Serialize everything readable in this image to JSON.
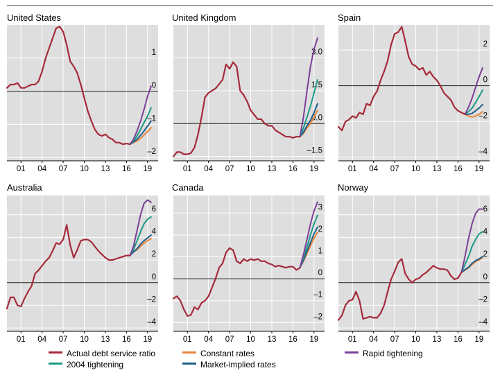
{
  "colors": {
    "actual": "#a52a3a",
    "constant": "#e8833a",
    "market": "#1f5f8b",
    "tight2004": "#1a9a85",
    "rapid": "#7b3f98",
    "panel_bg": "#dedede",
    "grid": "#ffffff"
  },
  "legend": {
    "actual": "Actual debt service ratio",
    "tight2004": "2004 tightening",
    "constant": "Constant rates",
    "market": "Market-implied rates",
    "rapid": "Rapid tightening"
  },
  "chart_data": [
    {
      "type": "line",
      "title": "United States",
      "x_ticks": [
        "01",
        "04",
        "07",
        "10",
        "13",
        "16",
        "19"
      ],
      "x_tick_years": [
        2001,
        2004,
        2007,
        2010,
        2013,
        2016,
        2019
      ],
      "x_range": [
        1999,
        2020.5
      ],
      "ylim": [
        -2.1,
        2.0
      ],
      "y_ticks": [
        1,
        0,
        -1,
        -2
      ],
      "y_tick_labels": [
        "1",
        "0",
        "–1",
        "–2"
      ],
      "zero_line": 0,
      "actual": {
        "x": [
          1999,
          1999.5,
          2000,
          2000.5,
          2001,
          2001.5,
          2002,
          2002.5,
          2003,
          2003.5,
          2004,
          2004.5,
          2005,
          2005.5,
          2006,
          2006.5,
          2007,
          2007.5,
          2008,
          2008.5,
          2009,
          2009.5,
          2010,
          2010.5,
          2011,
          2011.5,
          2012,
          2012.5,
          2013,
          2013.5,
          2014,
          2014.5,
          2015,
          2015.5,
          2016,
          2016.5
        ],
        "y": [
          0.1,
          0.2,
          0.2,
          0.25,
          0.1,
          0.1,
          0.15,
          0.2,
          0.2,
          0.3,
          0.6,
          1.0,
          1.3,
          1.6,
          1.9,
          1.95,
          1.8,
          1.4,
          0.9,
          0.75,
          0.55,
          0.2,
          -0.2,
          -0.6,
          -0.9,
          -1.15,
          -1.3,
          -1.35,
          -1.3,
          -1.4,
          -1.45,
          -1.55,
          -1.55,
          -1.6,
          -1.58,
          -1.6
        ]
      },
      "projections": {
        "x": [
          2016.5,
          2017,
          2017.5,
          2018,
          2018.5,
          2019,
          2019.5
        ],
        "constant": [
          -1.6,
          -1.55,
          -1.5,
          -1.42,
          -1.32,
          -1.22,
          -1.1
        ],
        "market": [
          -1.6,
          -1.53,
          -1.45,
          -1.33,
          -1.2,
          -1.05,
          -0.9
        ],
        "tight2004": [
          -1.6,
          -1.5,
          -1.35,
          -1.15,
          -0.95,
          -0.75,
          -0.5
        ],
        "rapid": [
          -1.6,
          -1.45,
          -1.2,
          -0.9,
          -0.55,
          -0.15,
          0.15
        ]
      }
    },
    {
      "type": "line",
      "title": "United Kingdom",
      "x_ticks": [
        "01",
        "04",
        "07",
        "10",
        "13",
        "16",
        "19"
      ],
      "x_tick_years": [
        2001,
        2004,
        2007,
        2010,
        2013,
        2016,
        2019
      ],
      "x_range": [
        1999,
        2020.5
      ],
      "ylim": [
        -1.7,
        4.5
      ],
      "y_ticks": [
        3.0,
        1.5,
        0.0,
        -1.5
      ],
      "y_tick_labels": [
        "3.0",
        "1.5",
        "0.0",
        "–1.5"
      ],
      "zero_line": 0,
      "actual": {
        "x": [
          1999,
          1999.5,
          2000,
          2000.5,
          2001,
          2001.5,
          2002,
          2002.5,
          2003,
          2003.5,
          2004,
          2004.5,
          2005,
          2005.5,
          2006,
          2006.5,
          2007,
          2007.5,
          2008,
          2008.5,
          2009,
          2009.5,
          2010,
          2010.5,
          2011,
          2011.5,
          2012,
          2012.5,
          2013,
          2013.5,
          2014,
          2014.5,
          2015,
          2015.5,
          2016,
          2016.5,
          2017
        ],
        "y": [
          -1.5,
          -1.3,
          -1.3,
          -1.4,
          -1.4,
          -1.35,
          -1.1,
          -0.5,
          0.3,
          1.2,
          1.4,
          1.5,
          1.6,
          1.8,
          2.0,
          2.7,
          2.5,
          2.8,
          2.6,
          1.5,
          1.3,
          1.0,
          0.6,
          0.4,
          0.2,
          0.2,
          0.0,
          -0.1,
          -0.1,
          -0.3,
          -0.4,
          -0.5,
          -0.6,
          -0.6,
          -0.65,
          -0.6,
          -0.6
        ]
      },
      "projections": {
        "x": [
          2017,
          2017.5,
          2018,
          2018.5,
          2019,
          2019.5
        ],
        "constant": [
          -0.6,
          -0.45,
          -0.2,
          0.0,
          0.3,
          0.6
        ],
        "market": [
          -0.6,
          -0.4,
          -0.1,
          0.15,
          0.5,
          0.9
        ],
        "tight2004": [
          -0.6,
          -0.2,
          0.3,
          0.8,
          1.4,
          2.0
        ],
        "rapid": [
          -0.6,
          0.3,
          1.5,
          2.6,
          3.4,
          3.9
        ]
      }
    },
    {
      "type": "line",
      "title": "Spain",
      "x_ticks": [
        "01",
        "04",
        "07",
        "10",
        "13",
        "16",
        "19"
      ],
      "x_tick_years": [
        2001,
        2004,
        2007,
        2010,
        2013,
        2016,
        2019
      ],
      "x_range": [
        1999,
        2020.5
      ],
      "ylim": [
        -4.2,
        3.4
      ],
      "y_ticks": [
        2,
        0,
        -2,
        -4
      ],
      "y_tick_labels": [
        "2",
        "0",
        "–2",
        "–4"
      ],
      "zero_line": 0,
      "actual": {
        "x": [
          1999,
          1999.5,
          2000,
          2000.5,
          2001,
          2001.5,
          2002,
          2002.5,
          2003,
          2003.5,
          2004,
          2004.5,
          2005,
          2005.5,
          2006,
          2006.5,
          2007,
          2007.5,
          2008,
          2008.5,
          2009,
          2009.5,
          2010,
          2010.5,
          2011,
          2011.5,
          2012,
          2012.5,
          2013,
          2013.5,
          2014,
          2014.5,
          2015,
          2015.5,
          2016,
          2016.5,
          2017
        ],
        "y": [
          -2.3,
          -2.5,
          -2.0,
          -1.9,
          -1.7,
          -1.8,
          -1.5,
          -1.6,
          -1.0,
          -1.1,
          -0.6,
          -0.3,
          0.3,
          0.8,
          1.4,
          2.3,
          2.9,
          3.0,
          3.3,
          2.5,
          1.6,
          1.2,
          1.1,
          0.9,
          1.0,
          0.6,
          0.8,
          0.5,
          0.3,
          0.0,
          -0.4,
          -0.6,
          -0.8,
          -1.2,
          -1.4,
          -1.5,
          -1.6
        ]
      },
      "projections": {
        "x": [
          2017,
          2017.5,
          2018,
          2018.5,
          2019,
          2019.5
        ],
        "constant": [
          -1.6,
          -1.7,
          -1.75,
          -1.7,
          -1.6,
          -1.45
        ],
        "market": [
          -1.6,
          -1.6,
          -1.55,
          -1.4,
          -1.25,
          -1.05
        ],
        "tight2004": [
          -1.6,
          -1.45,
          -1.25,
          -0.95,
          -0.6,
          -0.25
        ],
        "rapid": [
          -1.6,
          -1.2,
          -0.7,
          -0.1,
          0.5,
          1.0
        ]
      }
    },
    {
      "type": "line",
      "title": "Australia",
      "x_ticks": [
        "01",
        "04",
        "07",
        "10",
        "13",
        "16",
        "19"
      ],
      "x_tick_years": [
        2001,
        2004,
        2007,
        2010,
        2013,
        2016,
        2019
      ],
      "x_range": [
        1999,
        2020.5
      ],
      "ylim": [
        -4.3,
        7.7
      ],
      "y_ticks": [
        6,
        4,
        2,
        0,
        -2,
        -4
      ],
      "y_tick_labels": [
        "6",
        "4",
        "2",
        "0",
        "–2",
        "–4"
      ],
      "zero_line": 0,
      "actual": {
        "x": [
          1999,
          1999.5,
          2000,
          2000.5,
          2001,
          2001.5,
          2002,
          2002.5,
          2003,
          2003.5,
          2004,
          2004.5,
          2005,
          2005.5,
          2006,
          2006.5,
          2007,
          2007.5,
          2008,
          2008.5,
          2009,
          2009.5,
          2010,
          2010.5,
          2011,
          2011.5,
          2012,
          2012.5,
          2013,
          2013.5,
          2014,
          2014.5,
          2015,
          2015.5,
          2016,
          2016.5
        ],
        "y": [
          -2.3,
          -1.3,
          -1.3,
          -2.0,
          -2.1,
          -1.4,
          -0.8,
          -0.3,
          0.8,
          1.1,
          1.5,
          1.9,
          2.2,
          2.8,
          3.5,
          3.4,
          3.8,
          5.1,
          3.3,
          2.2,
          2.9,
          3.7,
          3.8,
          3.8,
          3.6,
          3.2,
          2.8,
          2.5,
          2.2,
          2.0,
          2.0,
          2.1,
          2.2,
          2.3,
          2.4,
          2.4
        ]
      },
      "projections": {
        "x": [
          2016.5,
          2017,
          2017.5,
          2018,
          2018.5,
          2019,
          2019.5
        ],
        "constant": [
          2.4,
          2.7,
          2.9,
          3.2,
          3.5,
          3.7,
          3.9
        ],
        "market": [
          2.4,
          2.7,
          3.0,
          3.4,
          3.7,
          3.95,
          4.2
        ],
        "tight2004": [
          2.4,
          2.9,
          3.7,
          4.5,
          5.2,
          5.6,
          5.8
        ],
        "rapid": [
          2.4,
          3.2,
          4.6,
          6.0,
          7.0,
          7.3,
          7.1
        ]
      }
    },
    {
      "type": "line",
      "title": "Canada",
      "x_ticks": [
        "01",
        "04",
        "07",
        "10",
        "13",
        "16",
        "19"
      ],
      "x_tick_years": [
        2001,
        2004,
        2007,
        2010,
        2013,
        2016,
        2019
      ],
      "x_range": [
        1999,
        2020.5
      ],
      "ylim": [
        -2.4,
        3.8
      ],
      "y_ticks": [
        3,
        2,
        1,
        0,
        -1,
        -2
      ],
      "y_tick_labels": [
        "3",
        "2",
        "1",
        "0",
        "–1",
        "–2"
      ],
      "zero_line": 0,
      "actual": {
        "x": [
          1999,
          1999.5,
          2000,
          2000.5,
          2001,
          2001.5,
          2002,
          2002.5,
          2003,
          2003.5,
          2004,
          2004.5,
          2005,
          2005.5,
          2006,
          2006.5,
          2007,
          2007.5,
          2008,
          2008.5,
          2009,
          2009.5,
          2010,
          2010.5,
          2011,
          2011.5,
          2012,
          2012.5,
          2013,
          2013.5,
          2014,
          2014.5,
          2015,
          2015.5,
          2016,
          2016.5,
          2017
        ],
        "y": [
          -0.9,
          -0.8,
          -1.0,
          -1.4,
          -1.7,
          -1.65,
          -1.3,
          -1.4,
          -1.1,
          -1.0,
          -0.8,
          -0.4,
          0.0,
          0.5,
          0.7,
          1.2,
          1.4,
          1.3,
          0.8,
          0.7,
          0.9,
          0.8,
          0.9,
          0.85,
          0.9,
          0.8,
          0.8,
          0.7,
          0.65,
          0.55,
          0.6,
          0.55,
          0.5,
          0.55,
          0.55,
          0.4,
          0.5
        ]
      },
      "projections": {
        "x": [
          2017,
          2017.5,
          2018,
          2018.5,
          2019,
          2019.5
        ],
        "constant": [
          0.5,
          0.8,
          1.15,
          1.5,
          1.85,
          2.1
        ],
        "market": [
          0.5,
          0.85,
          1.25,
          1.65,
          2.05,
          2.35
        ],
        "tight2004": [
          0.5,
          0.95,
          1.45,
          2.0,
          2.5,
          2.9
        ],
        "rapid": [
          0.5,
          1.1,
          1.8,
          2.5,
          3.1,
          3.5
        ]
      }
    },
    {
      "type": "line",
      "title": "Norway",
      "x_ticks": [
        "01",
        "04",
        "07",
        "10",
        "13",
        "16",
        "19"
      ],
      "x_tick_years": [
        2001,
        2004,
        2007,
        2010,
        2013,
        2016,
        2019
      ],
      "x_range": [
        1999,
        2020.5
      ],
      "ylim": [
        -4.3,
        7.7
      ],
      "y_ticks": [
        6,
        4,
        2,
        0,
        -2,
        -4
      ],
      "y_tick_labels": [
        "6",
        "4",
        "2",
        "0",
        "–2",
        "–4"
      ],
      "zero_line": 0,
      "actual": {
        "x": [
          1999,
          1999.5,
          2000,
          2000.5,
          2001,
          2001.5,
          2002,
          2002.5,
          2003,
          2003.5,
          2004,
          2004.5,
          2005,
          2005.5,
          2006,
          2006.5,
          2007,
          2007.5,
          2008,
          2008.5,
          2009,
          2009.5,
          2010,
          2010.5,
          2011,
          2011.5,
          2012,
          2012.5,
          2013,
          2013.5,
          2014,
          2014.5,
          2015,
          2015.5,
          2016,
          2016.5
        ],
        "y": [
          -3.3,
          -2.9,
          -2.0,
          -1.6,
          -1.5,
          -0.8,
          -1.6,
          -3.2,
          -3.1,
          -3.0,
          -3.1,
          -3.1,
          -2.7,
          -2.0,
          -0.8,
          0.3,
          1.0,
          1.8,
          2.1,
          0.8,
          0.3,
          0.0,
          0.3,
          0.4,
          0.7,
          0.9,
          1.2,
          1.5,
          1.3,
          1.2,
          1.2,
          1.1,
          0.6,
          0.3,
          0.4,
          0.9
        ]
      },
      "projections": {
        "x": [
          2016.5,
          2017,
          2017.5,
          2018,
          2018.5,
          2019,
          2019.5
        ],
        "constant": [
          0.9,
          1.1,
          1.3,
          1.6,
          1.85,
          2.0,
          2.2
        ],
        "market": [
          0.9,
          1.15,
          1.35,
          1.7,
          1.95,
          2.1,
          2.3
        ],
        "tight2004": [
          0.9,
          1.6,
          2.3,
          3.2,
          3.8,
          4.3,
          4.5
        ],
        "rapid": [
          0.9,
          2.3,
          3.9,
          5.2,
          6.1,
          6.5,
          6.5
        ]
      }
    }
  ]
}
